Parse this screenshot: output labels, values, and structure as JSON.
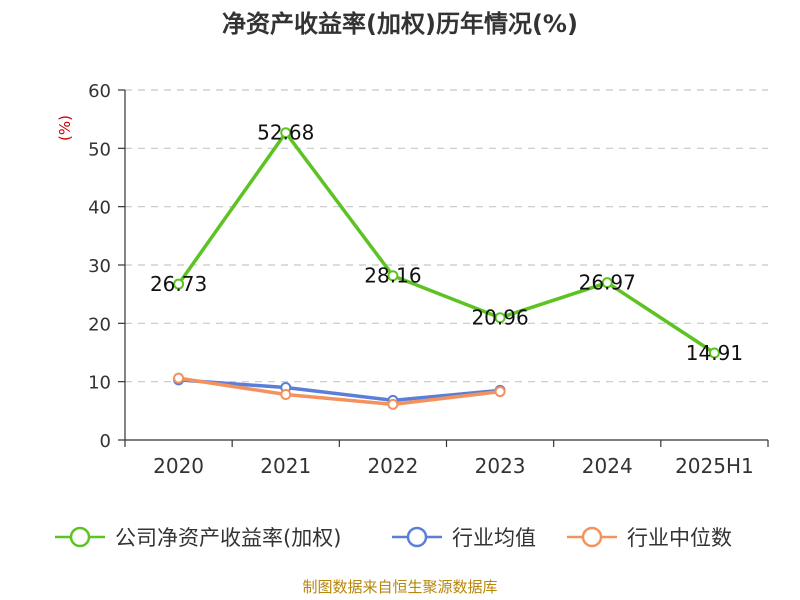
{
  "chart_data": {
    "type": "line",
    "title": "净资产收益率(加权)历年情况(%)",
    "ylabel": "(%)",
    "ylim": [
      0,
      60
    ],
    "yticks": [
      0,
      10,
      20,
      30,
      40,
      50,
      60
    ],
    "grid": true,
    "legend_position": "bottom",
    "categories": [
      "2020",
      "2021",
      "2022",
      "2023",
      "2024",
      "2025H1"
    ],
    "series": [
      {
        "name": "公司净资产收益率(加权)",
        "color": "#5cc323",
        "values": [
          26.73,
          52.68,
          28.16,
          20.96,
          26.97,
          14.91
        ],
        "labels": [
          "26.73",
          "52.68",
          "28.16",
          "20.96",
          "26.97",
          "14.91"
        ]
      },
      {
        "name": "行业均值",
        "color": "#5b7fd8",
        "values": [
          10.3,
          9.0,
          6.8,
          8.5,
          null,
          null
        ]
      },
      {
        "name": "行业中位数",
        "color": "#f4925e",
        "values": [
          10.6,
          7.8,
          6.1,
          8.3,
          null,
          null
        ]
      }
    ]
  },
  "source": "制图数据来自恒生聚源数据库"
}
